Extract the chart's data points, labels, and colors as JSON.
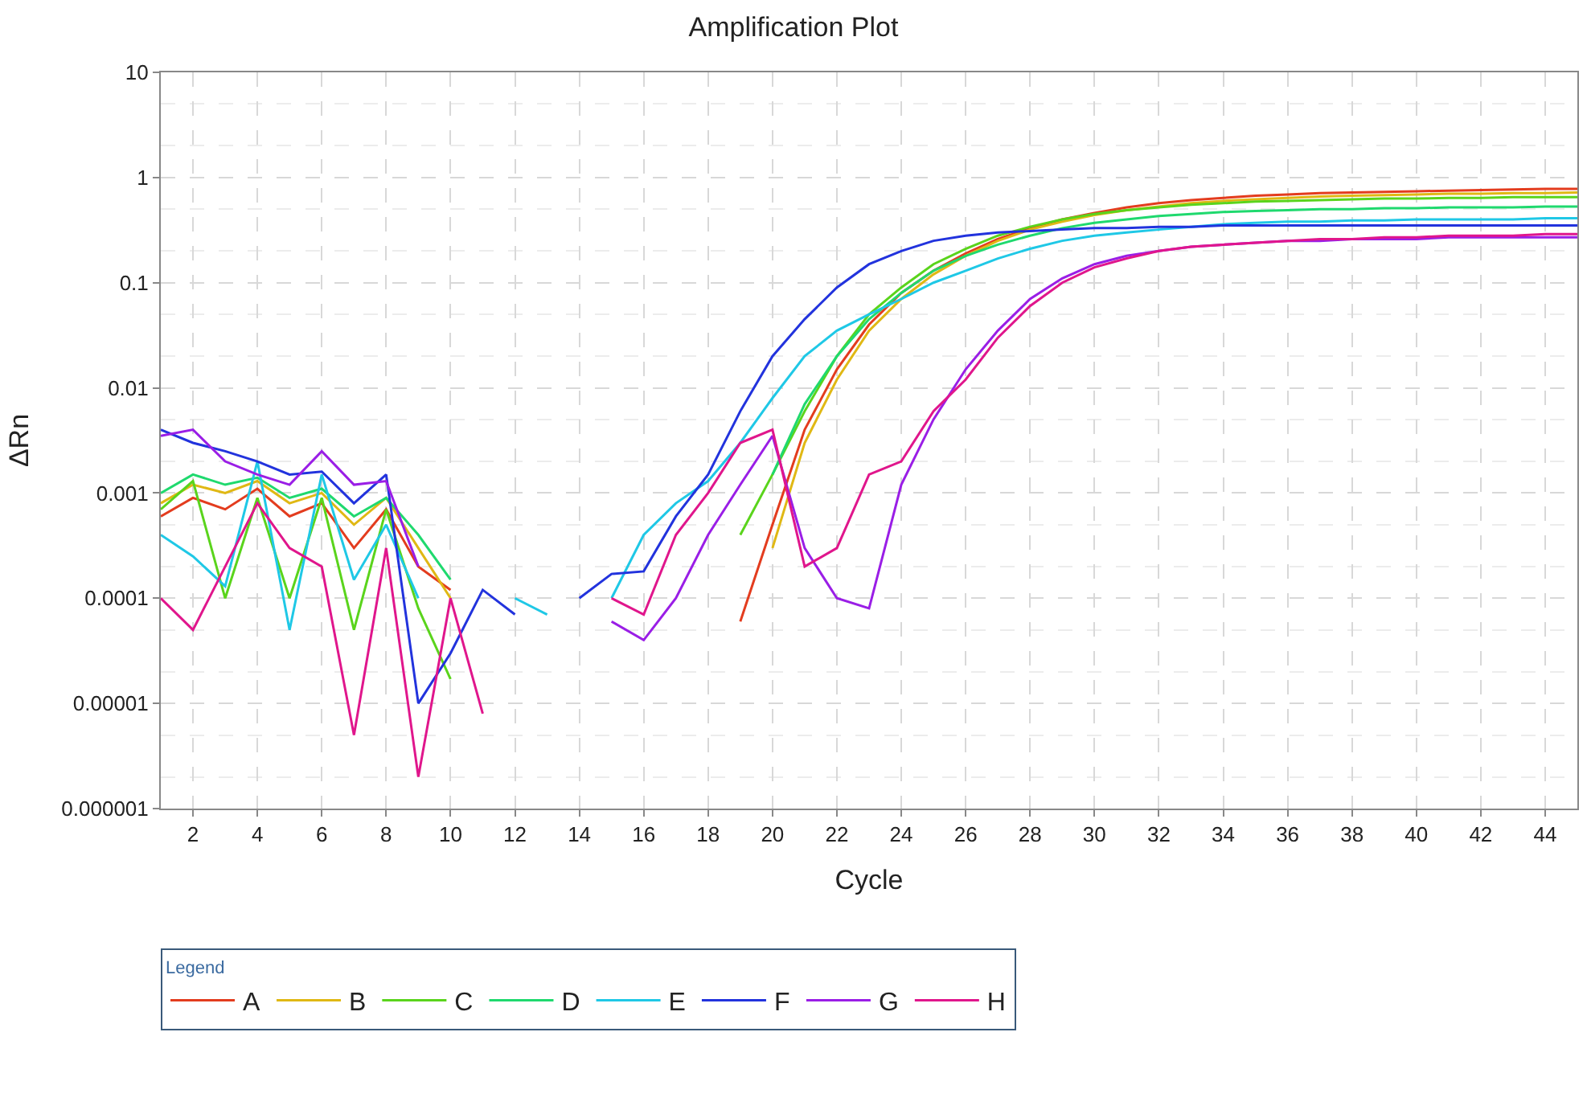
{
  "chart_data": {
    "type": "line",
    "title": "Amplification Plot",
    "xlabel": "Cycle",
    "ylabel": "ΔRn",
    "legend_title": "Legend",
    "legend": "bottom",
    "grid": true,
    "log": "y",
    "marker": "none",
    "line_style": "solid",
    "xlim": [
      1,
      45
    ],
    "xticks": [
      2,
      4,
      6,
      8,
      10,
      12,
      14,
      16,
      18,
      20,
      22,
      24,
      26,
      28,
      30,
      32,
      34,
      36,
      38,
      40,
      42,
      44
    ],
    "ylim": [
      1e-06,
      10
    ],
    "yticks": [
      {
        "value": 1e-06,
        "label": "0.000001"
      },
      {
        "value": 1e-05,
        "label": "0.00001"
      },
      {
        "value": 0.0001,
        "label": "0.0001"
      },
      {
        "value": 0.001,
        "label": "0.001"
      },
      {
        "value": 0.01,
        "label": "0.01"
      },
      {
        "value": 0.1,
        "label": "0.1"
      },
      {
        "value": 1,
        "label": "1"
      },
      {
        "value": 10,
        "label": "10"
      }
    ],
    "series": [
      {
        "name": "A",
        "color": "#e33c1e",
        "x": [
          1,
          2,
          3,
          4,
          5,
          6,
          7,
          8,
          9,
          10,
          11,
          19,
          20,
          21,
          22,
          23,
          24,
          25,
          26,
          27,
          28,
          29,
          30,
          31,
          32,
          33,
          34,
          35,
          36,
          37,
          38,
          39,
          40,
          41,
          42,
          43,
          44,
          45
        ],
        "values": [
          0.0006,
          0.0009,
          0.0007,
          0.0011,
          0.0006,
          0.0008,
          0.0003,
          0.0007,
          0.0002,
          0.00012,
          null,
          6e-05,
          0.0005,
          0.004,
          0.015,
          0.04,
          0.08,
          0.13,
          0.19,
          0.26,
          0.33,
          0.4,
          0.46,
          0.52,
          0.57,
          0.61,
          0.64,
          0.67,
          0.69,
          0.71,
          0.72,
          0.73,
          0.74,
          0.75,
          0.76,
          0.77,
          0.78,
          0.78
        ]
      },
      {
        "name": "B",
        "color": "#e0b814",
        "x": [
          1,
          2,
          3,
          4,
          5,
          6,
          7,
          8,
          9,
          10,
          11,
          20,
          21,
          22,
          23,
          24,
          25,
          26,
          27,
          28,
          29,
          30,
          31,
          32,
          33,
          34,
          35,
          36,
          37,
          38,
          39,
          40,
          41,
          42,
          43,
          44,
          45
        ],
        "values": [
          0.0008,
          0.0012,
          0.001,
          0.0013,
          0.0008,
          0.001,
          0.0005,
          0.0009,
          0.0003,
          0.0001,
          null,
          0.0003,
          0.003,
          0.012,
          0.035,
          0.07,
          0.12,
          0.18,
          0.25,
          0.32,
          0.38,
          0.44,
          0.49,
          0.53,
          0.57,
          0.6,
          0.62,
          0.64,
          0.66,
          0.67,
          0.68,
          0.69,
          0.7,
          0.7,
          0.71,
          0.71,
          0.72
        ]
      },
      {
        "name": "C",
        "color": "#5ad41c",
        "x": [
          1,
          2,
          3,
          4,
          5,
          6,
          7,
          8,
          9,
          10,
          11,
          19,
          20,
          21,
          22,
          23,
          24,
          25,
          26,
          27,
          28,
          29,
          30,
          31,
          32,
          33,
          34,
          35,
          36,
          37,
          38,
          39,
          40,
          41,
          42,
          43,
          44,
          45
        ],
        "values": [
          0.0007,
          0.0013,
          0.0001,
          0.0009,
          0.0001,
          0.0009,
          5e-05,
          0.0007,
          8e-05,
          1.7e-05,
          null,
          0.0004,
          0.0015,
          0.006,
          0.02,
          0.05,
          0.09,
          0.15,
          0.21,
          0.28,
          0.34,
          0.4,
          0.45,
          0.49,
          0.52,
          0.55,
          0.57,
          0.59,
          0.6,
          0.61,
          0.62,
          0.63,
          0.63,
          0.64,
          0.64,
          0.65,
          0.65,
          0.65
        ]
      },
      {
        "name": "D",
        "color": "#1fd96e",
        "x": [
          1,
          2,
          3,
          4,
          5,
          6,
          7,
          8,
          9,
          10,
          11,
          20,
          21,
          22,
          23,
          24,
          25,
          26,
          27,
          28,
          29,
          30,
          31,
          32,
          33,
          34,
          35,
          36,
          37,
          38,
          39,
          40,
          41,
          42,
          43,
          44,
          45
        ],
        "values": [
          0.001,
          0.0015,
          0.0012,
          0.0014,
          0.0009,
          0.0011,
          0.0006,
          0.0009,
          0.0004,
          0.00015,
          null,
          0.0015,
          0.007,
          0.02,
          0.045,
          0.08,
          0.13,
          0.18,
          0.23,
          0.28,
          0.33,
          0.37,
          0.4,
          0.43,
          0.45,
          0.47,
          0.48,
          0.49,
          0.5,
          0.5,
          0.51,
          0.51,
          0.52,
          0.52,
          0.52,
          0.53,
          0.53
        ]
      },
      {
        "name": "E",
        "color": "#1fc8e6",
        "x": [
          1,
          2,
          3,
          4,
          5,
          6,
          7,
          8,
          9,
          10,
          12,
          13,
          14,
          15,
          16,
          17,
          18,
          19,
          20,
          21,
          22,
          23,
          24,
          25,
          26,
          27,
          28,
          29,
          30,
          31,
          32,
          33,
          34,
          35,
          36,
          37,
          38,
          39,
          40,
          41,
          42,
          43,
          44,
          45
        ],
        "values": [
          0.0004,
          0.00025,
          0.00013,
          0.002,
          5e-05,
          0.0015,
          0.00015,
          0.0005,
          0.0001,
          null,
          0.0001,
          7e-05,
          null,
          0.0001,
          0.0004,
          0.0008,
          0.0013,
          0.003,
          0.008,
          0.02,
          0.035,
          0.05,
          0.07,
          0.1,
          0.13,
          0.17,
          0.21,
          0.25,
          0.28,
          0.3,
          0.32,
          0.34,
          0.36,
          0.37,
          0.38,
          0.38,
          0.39,
          0.39,
          0.4,
          0.4,
          0.4,
          0.4,
          0.41,
          0.41
        ]
      },
      {
        "name": "F",
        "color": "#2233dd",
        "x": [
          1,
          2,
          3,
          4,
          5,
          6,
          7,
          8,
          9,
          10,
          11,
          12,
          13,
          14,
          15,
          16,
          17,
          18,
          19,
          20,
          21,
          22,
          23,
          24,
          25,
          26,
          27,
          28,
          29,
          30,
          31,
          32,
          33,
          34,
          35,
          36,
          37,
          38,
          39,
          40,
          41,
          42,
          43,
          44,
          45
        ],
        "values": [
          0.004,
          0.003,
          0.0025,
          0.002,
          0.0015,
          0.0016,
          0.0008,
          0.0015,
          1e-05,
          3e-05,
          0.00012,
          7e-05,
          null,
          0.0001,
          0.00017,
          0.00018,
          0.0006,
          0.0015,
          0.006,
          0.02,
          0.045,
          0.09,
          0.15,
          0.2,
          0.25,
          0.28,
          0.3,
          0.31,
          0.32,
          0.33,
          0.33,
          0.34,
          0.34,
          0.35,
          0.35,
          0.35,
          0.35,
          0.35,
          0.35,
          0.35,
          0.35,
          0.35,
          0.35,
          0.35,
          0.35
        ]
      },
      {
        "name": "G",
        "color": "#9a1ee6",
        "x": [
          1,
          2,
          3,
          4,
          5,
          6,
          7,
          8,
          9,
          10,
          15,
          16,
          17,
          18,
          19,
          20,
          21,
          22,
          23,
          24,
          25,
          26,
          27,
          28,
          29,
          30,
          31,
          32,
          33,
          34,
          35,
          36,
          37,
          38,
          39,
          40,
          41,
          42,
          43,
          44,
          45
        ],
        "values": [
          0.0035,
          0.004,
          0.002,
          0.0015,
          0.0012,
          0.0025,
          0.0012,
          0.0013,
          0.0002,
          null,
          6e-05,
          4e-05,
          0.0001,
          0.0004,
          0.0012,
          0.0035,
          0.0003,
          0.0001,
          8e-05,
          0.0012,
          0.005,
          0.015,
          0.035,
          0.07,
          0.11,
          0.15,
          0.18,
          0.2,
          0.22,
          0.23,
          0.24,
          0.25,
          0.25,
          0.26,
          0.26,
          0.26,
          0.27,
          0.27,
          0.27,
          0.27,
          0.27
        ]
      },
      {
        "name": "H",
        "color": "#e0168c",
        "x": [
          1,
          2,
          3,
          4,
          5,
          6,
          7,
          8,
          9,
          10,
          11,
          12,
          15,
          16,
          17,
          18,
          19,
          20,
          21,
          22,
          23,
          24,
          25,
          26,
          27,
          28,
          29,
          30,
          31,
          32,
          33,
          34,
          35,
          36,
          37,
          38,
          39,
          40,
          41,
          42,
          43,
          44,
          45
        ],
        "values": [
          0.0001,
          5e-05,
          0.0002,
          0.0008,
          0.0003,
          0.0002,
          5e-06,
          0.0003,
          2e-06,
          0.0001,
          8e-06,
          null,
          0.0001,
          7e-05,
          0.0004,
          0.001,
          0.003,
          0.004,
          0.0002,
          0.0003,
          0.0015,
          0.002,
          0.006,
          0.012,
          0.03,
          0.06,
          0.1,
          0.14,
          0.17,
          0.2,
          0.22,
          0.23,
          0.24,
          0.25,
          0.26,
          0.26,
          0.27,
          0.27,
          0.28,
          0.28,
          0.28,
          0.29,
          0.29
        ]
      }
    ]
  }
}
